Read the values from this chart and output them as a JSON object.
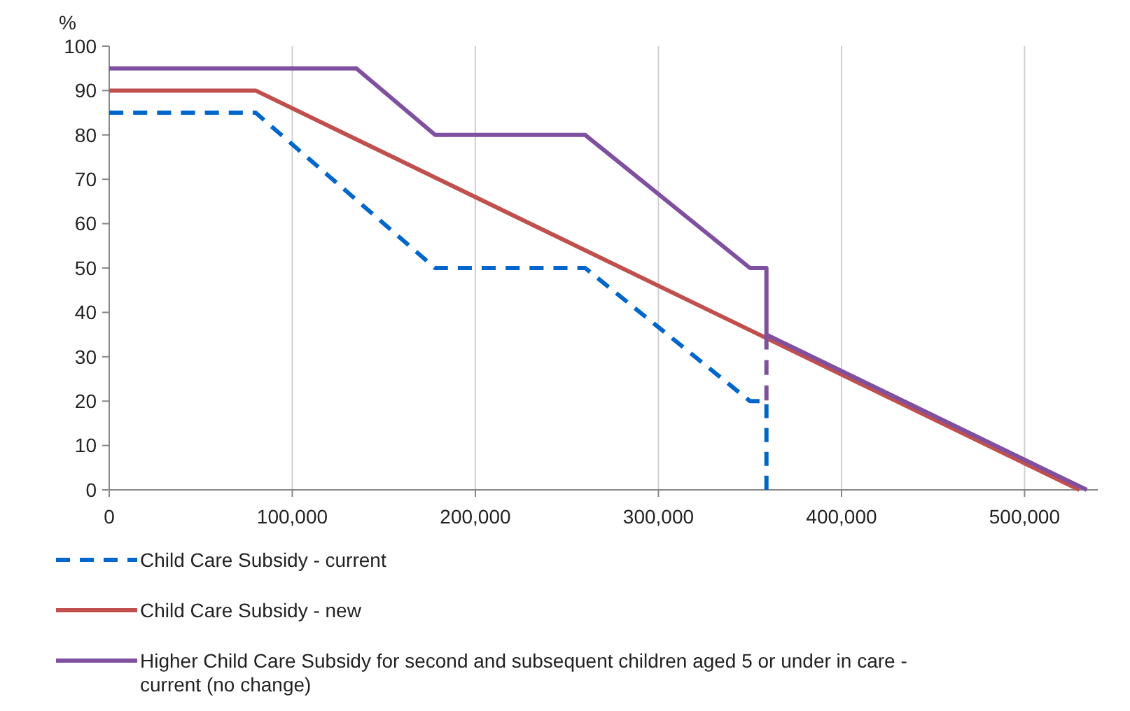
{
  "chart_data": {
    "type": "line",
    "ylabel": "%",
    "xlim": [
      0,
      540000
    ],
    "xticks": [
      0,
      {
        "value": 100000,
        "label": "100,000"
      },
      {
        "value": 200000,
        "label": "200,000"
      },
      {
        "value": 300000,
        "label": "300,000"
      },
      {
        "value": 400000,
        "label": "400,000"
      },
      {
        "value": 500000,
        "label": "500,000"
      }
    ],
    "ylim": [
      0,
      100
    ],
    "yticks": [
      0,
      10,
      20,
      30,
      40,
      50,
      60,
      70,
      80,
      90,
      100
    ],
    "grid": "x",
    "legend": "bottom",
    "series": [
      {
        "name": "Child Care Subsidy - current",
        "color": "#0066cc",
        "line_style": "dashed",
        "x": [
          0,
          80000,
          178000,
          260000,
          350000,
          359000,
          359000
        ],
        "values": [
          85,
          85,
          50,
          50,
          20,
          20,
          0
        ]
      },
      {
        "name": "Child Care Subsidy - new",
        "color": "#c0504d",
        "line_style": "solid",
        "x": [
          0,
          80000,
          530000
        ],
        "values": [
          90,
          90,
          0
        ]
      },
      {
        "name": "Higher Child Care Subsidy for second and subsequent children aged 5 or under in care - current (no change)",
        "color": "#8050a0",
        "line_style": "solid",
        "x": [
          0,
          135000,
          178000,
          260000,
          350000,
          359000,
          359000,
          534000
        ],
        "values": [
          95,
          95,
          80,
          80,
          50,
          50,
          35,
          0
        ]
      },
      {
        "color": "#8050a0",
        "line_style": "dashed",
        "x": [
          359000,
          359000
        ],
        "values": [
          35,
          20
        ]
      }
    ]
  }
}
